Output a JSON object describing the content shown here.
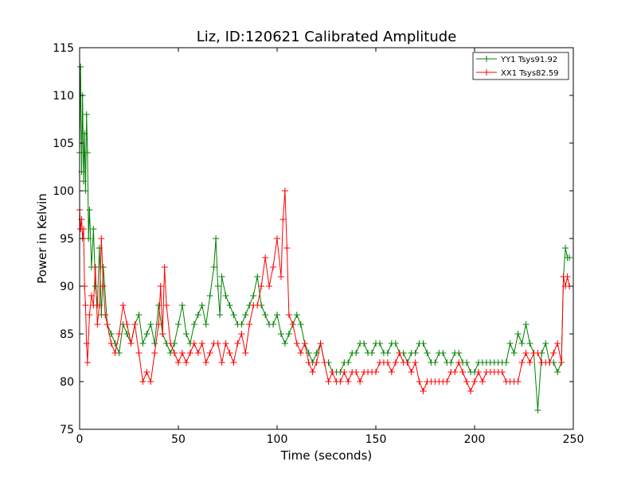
{
  "chart_data": {
    "type": "line",
    "title": "Liz, ID:120621 Calibrated Amplitude",
    "xlabel": "Time (seconds)",
    "ylabel": "Power in Kelvin",
    "xlim": [
      0,
      250
    ],
    "ylim": [
      75,
      115
    ],
    "xticks": [
      0,
      50,
      100,
      150,
      200,
      250
    ],
    "yticks": [
      75,
      80,
      85,
      90,
      95,
      100,
      105,
      110,
      115
    ],
    "grid": false,
    "legend_position": "top-right",
    "marker": "plus",
    "series": [
      {
        "name": "YY1 Tsys91.92",
        "color": "#008000",
        "x": [
          0,
          0.5,
          1,
          1.5,
          2,
          2.5,
          3,
          3.5,
          4,
          4.5,
          5,
          6,
          7,
          8,
          9,
          10,
          11,
          12,
          14,
          16,
          18,
          20,
          22,
          24,
          26,
          28,
          30,
          32,
          34,
          36,
          38,
          40,
          42,
          44,
          46,
          48,
          50,
          52,
          54,
          56,
          58,
          60,
          62,
          64,
          66,
          68,
          69,
          70,
          71,
          72,
          74,
          76,
          78,
          80,
          82,
          84,
          86,
          88,
          90,
          92,
          94,
          96,
          98,
          100,
          102,
          104,
          106,
          108,
          110,
          112,
          114,
          116,
          118,
          120,
          122,
          124,
          126,
          128,
          130,
          132,
          134,
          136,
          138,
          140,
          142,
          144,
          146,
          148,
          150,
          152,
          154,
          156,
          158,
          160,
          162,
          164,
          166,
          168,
          170,
          172,
          174,
          176,
          178,
          180,
          182,
          184,
          186,
          188,
          190,
          192,
          194,
          196,
          198,
          200,
          202,
          204,
          206,
          208,
          210,
          212,
          214,
          216,
          218,
          220,
          222,
          224,
          226,
          228,
          230,
          232,
          234,
          236,
          238,
          240,
          242,
          244,
          245,
          246,
          247,
          248
        ],
        "y": [
          104,
          113,
          102,
          110,
          101,
          106,
          100,
          108,
          104,
          95,
          98,
          92,
          96,
          90,
          88,
          94,
          87,
          92,
          86,
          85,
          84,
          83,
          86,
          85,
          84,
          86,
          87,
          84,
          85,
          86,
          84,
          88,
          85,
          84,
          83,
          84,
          86,
          88,
          85,
          84,
          86,
          87,
          88,
          86,
          89,
          92,
          95,
          90,
          87,
          91,
          89,
          88,
          87,
          86,
          86,
          87,
          88,
          89,
          91,
          88,
          87,
          86,
          86,
          87,
          85,
          84,
          85,
          86,
          87,
          86,
          84,
          83,
          82,
          83,
          84,
          82,
          82,
          81,
          81,
          81,
          82,
          82,
          83,
          83,
          84,
          84,
          83,
          83,
          84,
          84,
          83,
          83,
          84,
          84,
          83,
          83,
          82,
          83,
          83,
          84,
          84,
          83,
          82,
          82,
          83,
          83,
          82,
          82,
          83,
          83,
          82,
          82,
          81,
          81,
          82,
          82,
          82,
          82,
          82,
          82,
          82,
          82,
          84,
          83,
          85,
          84,
          86,
          84,
          83,
          77,
          83,
          84,
          82,
          82,
          81,
          82,
          91,
          94,
          93,
          93
        ]
      },
      {
        "name": "XX1 Tsys82.59",
        "color": "#ff0000",
        "x": [
          0,
          0.5,
          1,
          1.5,
          2,
          2.5,
          3,
          3.5,
          4,
          5,
          6,
          7,
          8,
          9,
          10,
          11,
          12,
          13,
          14,
          16,
          18,
          20,
          22,
          24,
          26,
          28,
          30,
          32,
          34,
          36,
          38,
          40,
          41,
          42,
          43,
          44,
          46,
          48,
          50,
          52,
          54,
          56,
          58,
          60,
          62,
          64,
          66,
          68,
          70,
          72,
          74,
          76,
          78,
          80,
          82,
          84,
          86,
          88,
          90,
          92,
          94,
          96,
          98,
          100,
          102,
          103,
          104,
          105,
          106,
          108,
          110,
          112,
          114,
          116,
          118,
          120,
          122,
          124,
          126,
          128,
          130,
          132,
          134,
          136,
          138,
          140,
          142,
          144,
          146,
          148,
          150,
          152,
          154,
          156,
          158,
          160,
          162,
          164,
          166,
          168,
          170,
          172,
          174,
          176,
          178,
          180,
          182,
          184,
          186,
          188,
          190,
          192,
          194,
          196,
          198,
          200,
          202,
          204,
          206,
          208,
          210,
          212,
          214,
          216,
          218,
          220,
          222,
          224,
          226,
          228,
          230,
          232,
          234,
          236,
          238,
          240,
          242,
          244,
          245,
          246,
          247,
          248
        ],
        "y": [
          98,
          96,
          97,
          95,
          96,
          90,
          88,
          84,
          82,
          87,
          89,
          88,
          92,
          86,
          88,
          95,
          90,
          87,
          86,
          84,
          83,
          85,
          88,
          86,
          84,
          86,
          83,
          80,
          81,
          80,
          83,
          86,
          90,
          85,
          92,
          88,
          84,
          83,
          82,
          83,
          82,
          83,
          84,
          83,
          84,
          82,
          83,
          84,
          84,
          82,
          84,
          83,
          82,
          84,
          85,
          83,
          86,
          88,
          88,
          90,
          93,
          90,
          92,
          95,
          91,
          97,
          100,
          94,
          87,
          86,
          84,
          83,
          84,
          82,
          81,
          82,
          84,
          82,
          80,
          81,
          80,
          80,
          81,
          80,
          81,
          81,
          80,
          81,
          81,
          81,
          81,
          82,
          82,
          82,
          81,
          82,
          83,
          82,
          82,
          81,
          82,
          80,
          79,
          80,
          80,
          80,
          80,
          80,
          80,
          81,
          81,
          82,
          81,
          80,
          79,
          80,
          81,
          80,
          81,
          81,
          81,
          81,
          81,
          80,
          80,
          80,
          80,
          82,
          83,
          82,
          83,
          83,
          82,
          82,
          82,
          83,
          84,
          82,
          91,
          90,
          91,
          90
        ]
      }
    ]
  }
}
